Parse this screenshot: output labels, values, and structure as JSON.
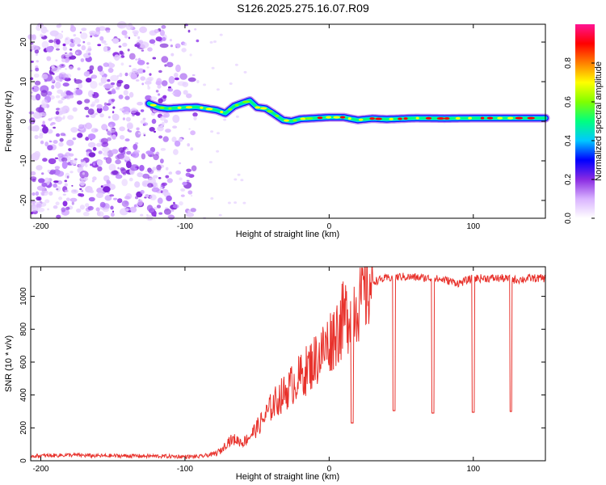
{
  "title": "S126.2025.275.16.07.R09",
  "chart_data": [
    {
      "type": "heatmap",
      "title": "S126.2025.275.16.07.R09",
      "xlabel": "Height of straight line (km)",
      "ylabel": "Frequency (Hz)",
      "xlim": [
        -207,
        150
      ],
      "ylim": [
        -24.5,
        24.5
      ],
      "x_ticks": [
        -200,
        -100,
        0,
        100
      ],
      "x_tick_labels": [
        "-200",
        "-100",
        "0",
        "100"
      ],
      "y_ticks": [
        -20,
        -10,
        0,
        10,
        20
      ],
      "y_tick_labels": [
        "-20",
        "-10",
        "0",
        "10",
        "20"
      ],
      "noise_region_x": [
        -207,
        -88
      ],
      "signal_track": {
        "x": [
          -125,
          -118,
          -112,
          -100,
          -92,
          -85,
          -78,
          -72,
          -66,
          -60,
          -55,
          -50,
          -44,
          -38,
          -32,
          -26,
          -20,
          -10,
          0,
          10,
          20,
          30,
          40,
          60,
          80,
          100,
          120,
          150
        ],
        "freq": [
          4.5,
          3.5,
          3.2,
          3.5,
          3.6,
          3.2,
          2.8,
          2.0,
          3.8,
          4.6,
          5.2,
          3.5,
          3.2,
          1.8,
          0.3,
          0.0,
          0.6,
          0.8,
          1.0,
          1.0,
          0.3,
          0.7,
          0.5,
          0.8,
          0.7,
          0.8,
          0.8,
          0.8
        ]
      },
      "colorbar": {
        "label": "Normalized spectral amplitude",
        "range": [
          0.0,
          1.0
        ],
        "ticks": [
          0.0,
          0.2,
          0.4,
          0.6,
          0.8
        ],
        "tick_labels": [
          "0.0",
          "0.2",
          "0.4",
          "0.6",
          "0.8"
        ],
        "colors": [
          "#ffffff",
          "#d9b3ff",
          "#8a2be2",
          "#0000ff",
          "#00c8ff",
          "#00ff80",
          "#80ff00",
          "#ffff00",
          "#ff8000",
          "#ff0000",
          "#ff1493"
        ]
      },
      "grid": false
    },
    {
      "type": "line",
      "xlabel": "Height of straight line (km)",
      "ylabel": "SNR (10 * v/v)",
      "xlim": [
        -207,
        150
      ],
      "ylim": [
        0,
        1180
      ],
      "x_ticks": [
        -200,
        -100,
        0,
        100
      ],
      "x_tick_labels": [
        "-200",
        "-100",
        "0",
        "100"
      ],
      "y_ticks": [
        0,
        200,
        400,
        600,
        800,
        1000
      ],
      "y_tick_labels": [
        "0",
        "200",
        "400",
        "600",
        "800",
        "1000"
      ],
      "series": [
        {
          "name": "SNR",
          "color": "#e8322c",
          "x": [
            -207,
            -200,
            -180,
            -160,
            -140,
            -120,
            -100,
            -90,
            -80,
            -75,
            -70,
            -65,
            -60,
            -55,
            -50,
            -45,
            -40,
            -35,
            -30,
            -25,
            -20,
            -15,
            -10,
            -5,
            0,
            5,
            10,
            15,
            20,
            25,
            30,
            40,
            50,
            60,
            70,
            80,
            90,
            100,
            110,
            120,
            130,
            140,
            150
          ],
          "y": [
            30,
            30,
            35,
            30,
            30,
            28,
            25,
            25,
            40,
            60,
            120,
            130,
            110,
            150,
            200,
            260,
            330,
            380,
            420,
            470,
            510,
            560,
            610,
            660,
            720,
            790,
            860,
            920,
            980,
            1040,
            1090,
            1110,
            1120,
            1115,
            1110,
            1100,
            1080,
            1110,
            1110,
            1110,
            1100,
            1110,
            1110
          ],
          "dips": [
            {
              "x": 16,
              "y": 230
            },
            {
              "x": 45,
              "y": 305
            },
            {
              "x": 72,
              "y": 290
            },
            {
              "x": 100,
              "y": 295
            },
            {
              "x": 126,
              "y": 300
            }
          ]
        }
      ],
      "grid": false
    }
  ]
}
